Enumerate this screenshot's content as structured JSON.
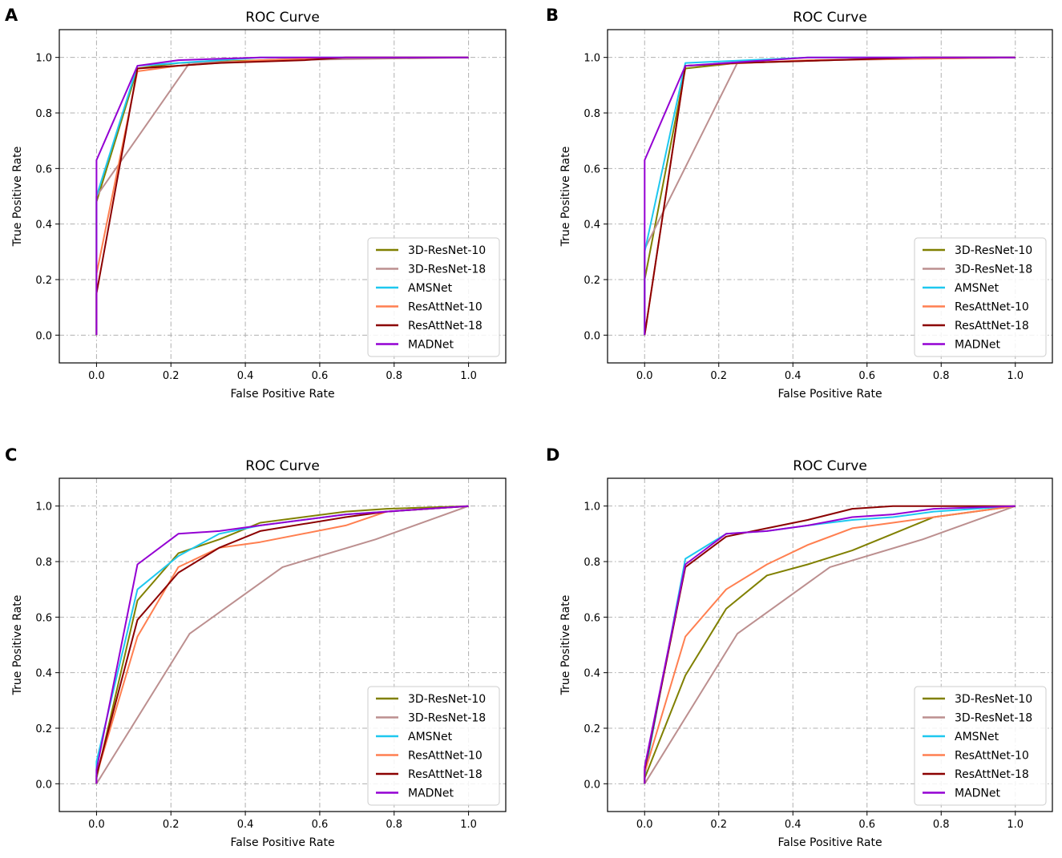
{
  "colors": {
    "3D-ResNet-10": "#808000",
    "3D-ResNet-18": "#bc8f8f",
    "AMSNet": "#1ec8ef",
    "ResAttNet-10": "#ff7f50",
    "ResAttNet-18": "#8b0000",
    "MADNet": "#9400d3"
  },
  "chart_data": [
    {
      "panel_letter": "A",
      "type": "line",
      "title": "ROC Curve",
      "xlabel": "False Positive Rate",
      "ylabel": "True Positive Rate",
      "xlim": [
        -0.1,
        1.1
      ],
      "ylim": [
        -0.1,
        1.1
      ],
      "xticks": [
        "0.0",
        "0.2",
        "0.4",
        "0.6",
        "0.8",
        "1.0"
      ],
      "yticks": [
        "0.0",
        "0.2",
        "0.4",
        "0.6",
        "0.8",
        "1.0"
      ],
      "grid": true,
      "legend_position": "lower-right",
      "series": [
        {
          "name": "3D-ResNet-10",
          "x": [
            0,
            0,
            0.11,
            0.22,
            0.44,
            0.67,
            1.0
          ],
          "y": [
            0,
            0.48,
            0.96,
            0.98,
            0.99,
            1.0,
            1.0
          ]
        },
        {
          "name": "3D-ResNet-18",
          "x": [
            0,
            0,
            0.25,
            0.5,
            1.0
          ],
          "y": [
            0,
            0.5,
            0.98,
            0.99,
            1.0
          ]
        },
        {
          "name": "AMSNet",
          "x": [
            0,
            0,
            0.11,
            0.22,
            0.44,
            1.0
          ],
          "y": [
            0,
            0.5,
            0.97,
            0.98,
            1.0,
            1.0
          ]
        },
        {
          "name": "ResAttNet-10",
          "x": [
            0,
            0,
            0.11,
            0.22,
            0.44,
            0.67,
            1.0
          ],
          "y": [
            0,
            0.22,
            0.95,
            0.97,
            0.99,
            1.0,
            1.0
          ]
        },
        {
          "name": "ResAttNet-18",
          "x": [
            0,
            0,
            0.11,
            0.33,
            0.56,
            0.67,
            1.0
          ],
          "y": [
            0,
            0.15,
            0.96,
            0.98,
            0.99,
            1.0,
            1.0
          ]
        },
        {
          "name": "MADNet",
          "x": [
            0,
            0,
            0.11,
            0.22,
            0.44,
            1.0
          ],
          "y": [
            0,
            0.63,
            0.97,
            0.99,
            1.0,
            1.0
          ]
        }
      ]
    },
    {
      "panel_letter": "B",
      "type": "line",
      "title": "ROC Curve",
      "xlabel": "False Positive Rate",
      "ylabel": "True Positive Rate",
      "xlim": [
        -0.1,
        1.1
      ],
      "ylim": [
        -0.1,
        1.1
      ],
      "xticks": [
        "0.0",
        "0.2",
        "0.4",
        "0.6",
        "0.8",
        "1.0"
      ],
      "yticks": [
        "0.0",
        "0.2",
        "0.4",
        "0.6",
        "0.8",
        "1.0"
      ],
      "grid": true,
      "legend_position": "lower-right",
      "series": [
        {
          "name": "3D-ResNet-10",
          "x": [
            0,
            0,
            0.11,
            0.25,
            0.5,
            0.75,
            1.0
          ],
          "y": [
            0,
            0.2,
            0.96,
            0.98,
            0.99,
            1.0,
            1.0
          ]
        },
        {
          "name": "3D-ResNet-18",
          "x": [
            0,
            0,
            0.25,
            0.5,
            1.0
          ],
          "y": [
            0,
            0.31,
            0.98,
            0.99,
            1.0
          ]
        },
        {
          "name": "AMSNet",
          "x": [
            0,
            0,
            0.11,
            0.44,
            1.0
          ],
          "y": [
            0,
            0.3,
            0.98,
            1.0,
            1.0
          ]
        },
        {
          "name": "ResAttNet-10",
          "x": [
            0,
            0,
            0.11,
            0.44,
            1.0
          ],
          "y": [
            0,
            0.0,
            0.97,
            0.99,
            1.0
          ]
        },
        {
          "name": "ResAttNet-18",
          "x": [
            0,
            0,
            0.11,
            0.25,
            0.75,
            1.0
          ],
          "y": [
            0,
            0.0,
            0.97,
            0.98,
            1.0,
            1.0
          ]
        },
        {
          "name": "MADNet",
          "x": [
            0,
            0,
            0.11,
            0.44,
            1.0
          ],
          "y": [
            0,
            0.63,
            0.97,
            1.0,
            1.0
          ]
        }
      ]
    },
    {
      "panel_letter": "C",
      "type": "line",
      "title": "ROC Curve",
      "xlabel": "False Positive Rate",
      "ylabel": "True Positive Rate",
      "xlim": [
        -0.1,
        1.1
      ],
      "ylim": [
        -0.1,
        1.1
      ],
      "xticks": [
        "0.0",
        "0.2",
        "0.4",
        "0.6",
        "0.8",
        "1.0"
      ],
      "yticks": [
        "0.0",
        "0.2",
        "0.4",
        "0.6",
        "0.8",
        "1.0"
      ],
      "grid": true,
      "legend_position": "lower-right",
      "series": [
        {
          "name": "3D-ResNet-10",
          "x": [
            0,
            0,
            0.11,
            0.22,
            0.33,
            0.44,
            0.67,
            0.78,
            1.0
          ],
          "y": [
            0,
            0.02,
            0.66,
            0.83,
            0.88,
            0.94,
            0.98,
            0.99,
            1.0
          ]
        },
        {
          "name": "3D-ResNet-18",
          "x": [
            0,
            0.25,
            0.5,
            0.75,
            1.0
          ],
          "y": [
            0,
            0.54,
            0.78,
            0.88,
            1.0
          ]
        },
        {
          "name": "AMSNet",
          "x": [
            0,
            0,
            0.11,
            0.22,
            0.33,
            0.44,
            0.67,
            1.0
          ],
          "y": [
            0,
            0.08,
            0.7,
            0.82,
            0.9,
            0.93,
            0.97,
            1.0
          ]
        },
        {
          "name": "ResAttNet-10",
          "x": [
            0,
            0,
            0.11,
            0.22,
            0.33,
            0.44,
            0.67,
            0.78,
            1.0
          ],
          "y": [
            0,
            0.03,
            0.53,
            0.78,
            0.85,
            0.87,
            0.93,
            0.98,
            1.0
          ]
        },
        {
          "name": "ResAttNet-18",
          "x": [
            0,
            0,
            0.11,
            0.22,
            0.33,
            0.44,
            0.67,
            0.78,
            1.0
          ],
          "y": [
            0,
            0.03,
            0.59,
            0.76,
            0.85,
            0.91,
            0.96,
            0.98,
            1.0
          ]
        },
        {
          "name": "MADNet",
          "x": [
            0,
            0,
            0.11,
            0.22,
            0.33,
            0.44,
            0.67,
            0.78,
            1.0
          ],
          "y": [
            0,
            0.05,
            0.79,
            0.9,
            0.91,
            0.93,
            0.97,
            0.98,
            1.0
          ]
        }
      ]
    },
    {
      "panel_letter": "D",
      "type": "line",
      "title": "ROC Curve",
      "xlabel": "False Positive Rate",
      "ylabel": "True Positive Rate",
      "xlim": [
        -0.1,
        1.1
      ],
      "ylim": [
        -0.1,
        1.1
      ],
      "xticks": [
        "0.0",
        "0.2",
        "0.4",
        "0.6",
        "0.8",
        "1.0"
      ],
      "yticks": [
        "0.0",
        "0.2",
        "0.4",
        "0.6",
        "0.8",
        "1.0"
      ],
      "grid": true,
      "legend_position": "lower-right",
      "series": [
        {
          "name": "3D-ResNet-10",
          "x": [
            0,
            0,
            0.11,
            0.22,
            0.33,
            0.44,
            0.56,
            0.67,
            0.78,
            1.0
          ],
          "y": [
            0,
            0.02,
            0.39,
            0.63,
            0.75,
            0.79,
            0.84,
            0.9,
            0.96,
            1.0
          ]
        },
        {
          "name": "3D-ResNet-18",
          "x": [
            0,
            0.25,
            0.5,
            0.75,
            1.0
          ],
          "y": [
            0,
            0.54,
            0.78,
            0.88,
            1.0
          ]
        },
        {
          "name": "AMSNet",
          "x": [
            0,
            0,
            0.11,
            0.22,
            0.33,
            0.44,
            0.56,
            0.67,
            0.78,
            1.0
          ],
          "y": [
            0,
            0.03,
            0.81,
            0.9,
            0.91,
            0.93,
            0.95,
            0.96,
            0.98,
            1.0
          ]
        },
        {
          "name": "ResAttNet-10",
          "x": [
            0,
            0,
            0.11,
            0.22,
            0.33,
            0.44,
            0.56,
            0.67,
            0.78,
            1.0
          ],
          "y": [
            0,
            0.04,
            0.53,
            0.7,
            0.79,
            0.86,
            0.92,
            0.94,
            0.96,
            1.0
          ]
        },
        {
          "name": "ResAttNet-18",
          "x": [
            0,
            0,
            0.11,
            0.22,
            0.33,
            0.44,
            0.56,
            0.67,
            0.78,
            1.0
          ],
          "y": [
            0,
            0.05,
            0.78,
            0.89,
            0.92,
            0.95,
            0.99,
            1.0,
            1.0,
            1.0
          ]
        },
        {
          "name": "MADNet",
          "x": [
            0,
            0,
            0.11,
            0.22,
            0.33,
            0.44,
            0.56,
            0.67,
            0.78,
            1.0
          ],
          "y": [
            0,
            0.06,
            0.79,
            0.9,
            0.91,
            0.93,
            0.96,
            0.97,
            0.99,
            1.0
          ]
        }
      ]
    }
  ]
}
